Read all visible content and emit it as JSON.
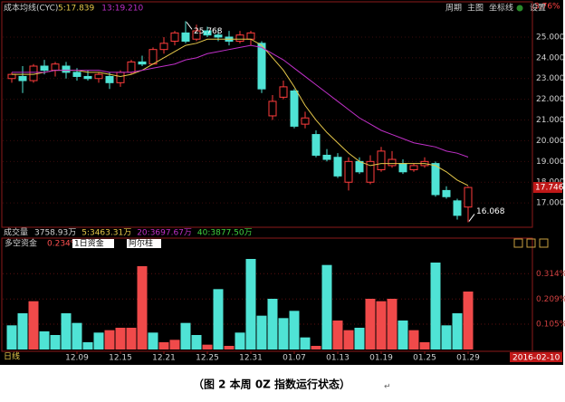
{
  "header": {
    "tools": [
      "周期",
      "主图",
      "坐标线",
      "设置"
    ]
  },
  "volume_header": {
    "title": "成交量",
    "items": [
      "3758.93万",
      "5:3463.31万",
      "20:3697.67万",
      "40:3877.50万"
    ]
  },
  "chart_data": [
    {
      "type": "candlestick",
      "title": "成本均线(CYC)",
      "top_label": "3.76%",
      "open": [
        23.0,
        23.1,
        22.9,
        23.6,
        23.4,
        23.6,
        23.3,
        23.1,
        23.0,
        23.1,
        22.8,
        23.3,
        23.8,
        23.7,
        24.4,
        24.8,
        25.2,
        24.9,
        25.3,
        25.1,
        25.0,
        24.8,
        24.9,
        24.7,
        21.2,
        22.1,
        22.4,
        20.8,
        20.3,
        19.3,
        19.2,
        18.0,
        19.0,
        18.0,
        18.6,
        18.8,
        18.9,
        18.6,
        18.8,
        18.9,
        17.6,
        17.1,
        16.8
      ],
      "high": [
        23.3,
        23.6,
        23.7,
        23.9,
        23.8,
        23.8,
        23.5,
        23.4,
        23.3,
        23.3,
        23.4,
        23.9,
        24.1,
        24.5,
        25.0,
        25.3,
        25.768,
        25.6,
        25.5,
        25.4,
        25.3,
        25.3,
        25.3,
        24.8,
        22.2,
        22.9,
        22.5,
        21.4,
        20.5,
        19.6,
        19.4,
        19.2,
        19.2,
        19.3,
        19.7,
        19.5,
        19.1,
        18.9,
        19.2,
        19.0,
        17.8,
        17.2,
        17.8
      ],
      "low": [
        22.8,
        22.3,
        22.8,
        23.2,
        23.1,
        23.0,
        22.9,
        22.9,
        22.8,
        22.5,
        22.6,
        23.2,
        23.6,
        23.7,
        24.2,
        24.6,
        24.7,
        24.8,
        25.0,
        24.8,
        24.6,
        24.7,
        24.6,
        22.3,
        21.0,
        22.0,
        20.6,
        20.6,
        19.2,
        19.0,
        18.2,
        17.6,
        18.4,
        17.9,
        18.5,
        18.7,
        18.4,
        18.5,
        18.7,
        17.3,
        17.2,
        16.2,
        16.068
      ],
      "close": [
        23.2,
        22.9,
        23.6,
        23.4,
        23.7,
        23.3,
        23.1,
        23.0,
        23.2,
        22.8,
        23.3,
        23.8,
        23.7,
        24.4,
        24.7,
        25.2,
        24.8,
        25.3,
        25.1,
        25.0,
        24.8,
        25.1,
        25.2,
        22.5,
        21.9,
        22.6,
        20.7,
        21.1,
        19.3,
        19.1,
        18.3,
        19.0,
        18.5,
        19.0,
        19.5,
        19.1,
        18.5,
        18.8,
        19.0,
        17.4,
        17.3,
        16.4,
        17.746
      ],
      "last_label": "17.746",
      "series": [
        {
          "name": "5:17.839",
          "color": "#e6c84a",
          "values": [
            23.2,
            23.2,
            23.2,
            23.3,
            23.4,
            23.4,
            23.4,
            23.3,
            23.3,
            23.2,
            23.1,
            23.2,
            23.4,
            23.7,
            24.0,
            24.3,
            24.6,
            24.7,
            24.9,
            24.9,
            24.9,
            24.9,
            24.9,
            24.6,
            24.0,
            23.4,
            22.6,
            21.7,
            21.0,
            20.4,
            19.9,
            19.4,
            19.0,
            18.8,
            18.9,
            18.9,
            18.9,
            18.9,
            18.9,
            18.8,
            18.5,
            18.1,
            17.839
          ]
        },
        {
          "name": "13:19.210",
          "color": "#c030c8",
          "values": [
            23.3,
            23.3,
            23.3,
            23.3,
            23.4,
            23.4,
            23.4,
            23.4,
            23.4,
            23.3,
            23.3,
            23.3,
            23.4,
            23.5,
            23.6,
            23.7,
            23.9,
            24.0,
            24.2,
            24.3,
            24.4,
            24.5,
            24.6,
            24.5,
            24.2,
            23.9,
            23.5,
            23.1,
            22.7,
            22.3,
            21.9,
            21.5,
            21.1,
            20.8,
            20.5,
            20.3,
            20.1,
            19.9,
            19.8,
            19.7,
            19.5,
            19.4,
            19.21
          ]
        }
      ],
      "annotations": [
        {
          "label": "25.768",
          "value": 25.768,
          "x": 16
        },
        {
          "label": "16.068",
          "value": 16.068,
          "x": 42
        }
      ],
      "ylim": [
        15.87,
        26.57
      ],
      "yticks": [
        {
          "value": 17,
          "label": "17.000"
        },
        {
          "value": 18,
          "label": "18.000"
        },
        {
          "value": 19,
          "label": "19.000"
        },
        {
          "value": 20,
          "label": "20.000"
        },
        {
          "value": 21,
          "label": "21.000"
        },
        {
          "value": 22,
          "label": "22.000"
        },
        {
          "value": 23,
          "label": "23.000"
        },
        {
          "value": 24,
          "label": "24.000"
        },
        {
          "value": 25,
          "label": "25.000"
        }
      ]
    },
    {
      "type": "bar",
      "title": "多空资金",
      "subtitle": "0.234%",
      "selectors": [
        "1日资金",
        "阿尔柱"
      ],
      "categories": [
        null,
        null,
        null,
        null,
        null,
        null,
        "12.09",
        null,
        null,
        null,
        "12.15",
        null,
        null,
        null,
        "12.21",
        null,
        null,
        null,
        "12.25",
        null,
        null,
        null,
        "12.31",
        null,
        null,
        null,
        "01.07",
        null,
        null,
        null,
        "01.13",
        null,
        null,
        null,
        "01.19",
        null,
        null,
        null,
        "01.25",
        null,
        null,
        null,
        "01.29"
      ],
      "values": [
        0.1,
        0.15,
        0.2,
        0.075,
        0.06,
        0.15,
        0.11,
        0.03,
        0.07,
        0.08,
        0.09,
        0.09,
        0.345,
        0.07,
        0.03,
        0.04,
        0.11,
        0.06,
        0.02,
        0.25,
        0.015,
        0.07,
        0.375,
        0.14,
        0.21,
        0.13,
        0.16,
        0.05,
        0.015,
        0.35,
        0.12,
        0.08,
        0.09,
        0.21,
        0.2,
        0.21,
        0.12,
        0.08,
        0.03,
        0.36,
        0.1,
        0.15,
        0.24
      ],
      "colors": [
        "#4fe3d5",
        "#4fe3d5",
        "#f04a4a",
        "#4fe3d5",
        "#4fe3d5",
        "#4fe3d5",
        "#4fe3d5",
        "#4fe3d5",
        "#4fe3d5",
        "#f04a4a",
        "#f04a4a",
        "#f04a4a",
        "#f04a4a",
        "#4fe3d5",
        "#f04a4a",
        "#f04a4a",
        "#4fe3d5",
        "#4fe3d5",
        "#f04a4a",
        "#4fe3d5",
        "#f04a4a",
        "#4fe3d5",
        "#4fe3d5",
        "#4fe3d5",
        "#4fe3d5",
        "#4fe3d5",
        "#4fe3d5",
        "#4fe3d5",
        "#f04a4a",
        "#4fe3d5",
        "#f04a4a",
        "#f04a4a",
        "#4fe3d5",
        "#f04a4a",
        "#f04a4a",
        "#f04a4a",
        "#4fe3d5",
        "#f04a4a",
        "#f04a4a",
        "#4fe3d5",
        "#4fe3d5",
        "#4fe3d5",
        "#f04a4a"
      ],
      "ylim": [
        0,
        0.405
      ],
      "yticks": [
        {
          "value": 0.105,
          "label": "0.105%"
        },
        {
          "value": 0.209,
          "label": "0.209%"
        },
        {
          "value": 0.314,
          "label": "0.314%"
        }
      ],
      "period": "日线",
      "date": "2016-02-10"
    }
  ],
  "caption": "（图 2  本周 0Z 指数运行状态）",
  "caption_mark": "↵"
}
